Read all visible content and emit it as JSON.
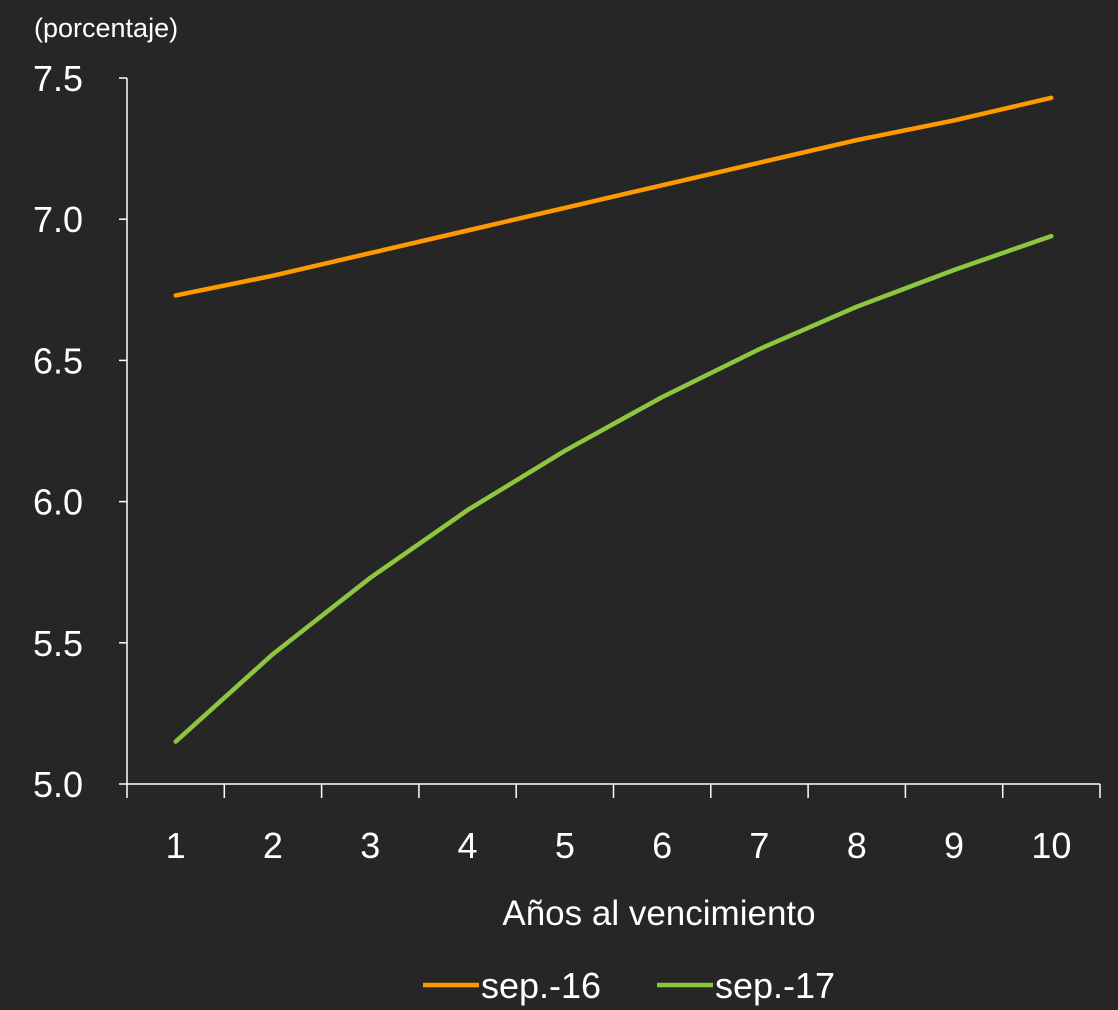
{
  "chart_data": {
    "type": "line",
    "unit_label": "(porcentaje)",
    "xlabel": "Años al vencimiento",
    "ylabel": "",
    "categories": [
      "1",
      "2",
      "3",
      "4",
      "5",
      "6",
      "7",
      "8",
      "9",
      "10"
    ],
    "ylim": [
      5.0,
      7.5
    ],
    "yticks": [
      "5.0",
      "5.5",
      "6.0",
      "6.5",
      "7.0",
      "7.5"
    ],
    "grid": false,
    "legend_position": "bottom",
    "series": [
      {
        "name": "sep.-16",
        "color": "#FF9900",
        "values": [
          6.73,
          6.8,
          6.88,
          6.96,
          7.04,
          7.12,
          7.2,
          7.28,
          7.35,
          7.43
        ]
      },
      {
        "name": "sep.-17",
        "color": "#8DC63F",
        "values": [
          5.15,
          5.46,
          5.73,
          5.97,
          6.18,
          6.37,
          6.54,
          6.69,
          6.82,
          6.94
        ]
      }
    ]
  }
}
